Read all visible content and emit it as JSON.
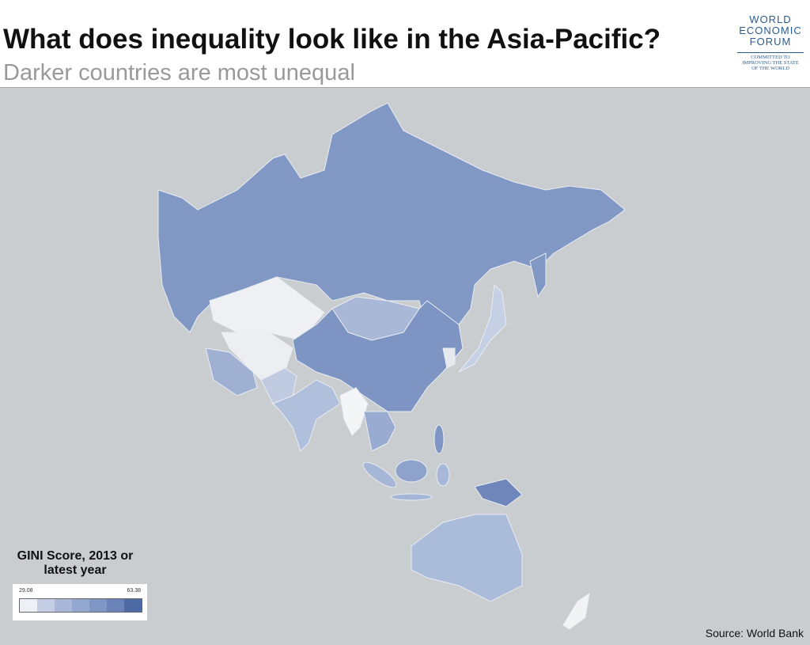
{
  "header": {
    "title": "What does inequality look like in the Asia-Pacific?",
    "subtitle": "Darker countries are most unequal"
  },
  "logo": {
    "lines": [
      "WORLD",
      "ECONOMIC",
      "FORUM"
    ],
    "tagline": [
      "COMMITTED TO",
      "IMPROVING THE STATE",
      "OF THE WORLD"
    ]
  },
  "legend": {
    "title_lines": [
      "GINI Score, 2013 or",
      "latest year"
    ],
    "min": 29.08,
    "max": 63.38,
    "colors": [
      "#eef0f5",
      "#c3cde3",
      "#a9b8d8",
      "#94a7cf",
      "#7f95c4",
      "#6a83b9",
      "#4e6aa5"
    ]
  },
  "source": "Source: World Bank"
}
